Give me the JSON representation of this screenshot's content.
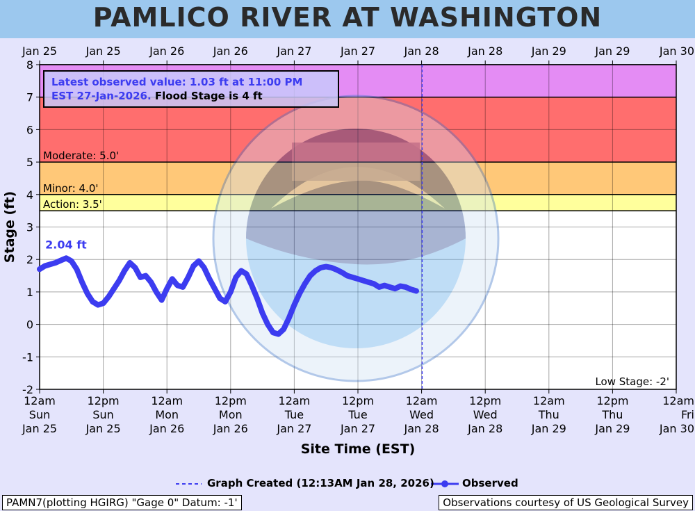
{
  "title": "PAMLICO RIVER AT WASHINGTON",
  "colors": {
    "page_bg": "#e4e4fc",
    "title_bg": "#9cc8ee",
    "observed": "#3c3cf0",
    "major": "#e48cf4",
    "moderate": "#ff6e6e",
    "minor": "#ffc878",
    "action": "#ffff9c",
    "normal": "#ffffff"
  },
  "info_box": {
    "line1": "Latest observed value: 1.03 ft at 11:00 PM",
    "line2_blue": "EST 27-Jan-2026.",
    "line2_black": " Flood Stage is 4 ft"
  },
  "legend": {
    "graph_created": "Graph Created (12:13AM Jan 28, 2026)",
    "observed": "Observed"
  },
  "footer": {
    "left": "PAMN7(plotting HGIRG) \"Gage 0\" Datum: -1'",
    "right": "Observations courtesy of US Geological Survey"
  },
  "chart_data": {
    "type": "line",
    "xlabel": "Site Time (EST)",
    "ylabel": "Stage (ft)",
    "ylim": [
      -2,
      8
    ],
    "yticks": [
      "8",
      "7",
      "6",
      "5",
      "4",
      "3",
      "2",
      "1",
      "0",
      "-1",
      "-2"
    ],
    "xlim_hours": [
      0,
      120
    ],
    "top_ticks": [
      "Jan 25",
      "Jan 25",
      "Jan 26",
      "Jan 26",
      "Jan 27",
      "Jan 27",
      "Jan 28",
      "Jan 28",
      "Jan 29",
      "Jan 29",
      "Jan 30"
    ],
    "bottom_ticks": [
      [
        "12am",
        "Sun",
        "Jan 25"
      ],
      [
        "12pm",
        "Sun",
        "Jan 25"
      ],
      [
        "12am",
        "Mon",
        "Jan 26"
      ],
      [
        "12pm",
        "Mon",
        "Jan 26"
      ],
      [
        "12am",
        "Tue",
        "Jan 27"
      ],
      [
        "12pm",
        "Tue",
        "Jan 27"
      ],
      [
        "12am",
        "Wed",
        "Jan 28"
      ],
      [
        "12pm",
        "Wed",
        "Jan 28"
      ],
      [
        "12am",
        "Thu",
        "Jan 29"
      ],
      [
        "12pm",
        "Thu",
        "Jan 29"
      ],
      [
        "12am",
        "Fri",
        "Jan 30"
      ]
    ],
    "flood_categories": [
      {
        "name": "Major",
        "from": 7,
        "to": 8,
        "label": ""
      },
      {
        "name": "Moderate",
        "from": 5,
        "to": 7,
        "label": "Moderate: 5.0'"
      },
      {
        "name": "Minor",
        "from": 4,
        "to": 5,
        "label": "Minor: 4.0'"
      },
      {
        "name": "Action",
        "from": 3.5,
        "to": 4,
        "label": "Action: 3.5'"
      }
    ],
    "low_stage_label": "Low Stage: -2'",
    "graph_created_hour": 72.1,
    "peak_annotation": {
      "text": "2.04 ft",
      "x": 5,
      "y": 2.04
    },
    "series": [
      {
        "name": "Observed",
        "x": [
          0,
          1,
          2,
          3,
          4,
          5,
          6,
          7,
          8,
          9,
          10,
          11,
          12,
          13,
          14,
          15,
          16,
          17,
          18,
          19,
          20,
          21,
          22,
          23,
          24,
          25,
          26,
          27,
          28,
          29,
          30,
          31,
          32,
          33,
          34,
          35,
          36,
          37,
          38,
          39,
          40,
          41,
          42,
          43,
          44,
          45,
          46,
          47,
          48,
          49,
          50,
          51,
          52,
          53,
          54,
          55,
          56,
          57,
          58,
          59,
          60,
          61,
          62,
          63,
          64,
          65,
          66,
          67,
          68,
          69,
          70,
          71
        ],
        "y": [
          1.7,
          1.8,
          1.85,
          1.9,
          1.97,
          2.04,
          1.95,
          1.7,
          1.3,
          0.95,
          0.7,
          0.6,
          0.65,
          0.85,
          1.1,
          1.35,
          1.65,
          1.9,
          1.75,
          1.45,
          1.5,
          1.3,
          1.0,
          0.75,
          1.1,
          1.4,
          1.2,
          1.15,
          1.45,
          1.8,
          1.95,
          1.75,
          1.4,
          1.1,
          0.8,
          0.7,
          1.0,
          1.45,
          1.65,
          1.55,
          1.2,
          0.8,
          0.35,
          0.0,
          -0.25,
          -0.3,
          -0.15,
          0.2,
          0.6,
          0.95,
          1.25,
          1.5,
          1.65,
          1.75,
          1.78,
          1.75,
          1.68,
          1.6,
          1.5,
          1.45,
          1.4,
          1.35,
          1.3,
          1.25,
          1.15,
          1.2,
          1.15,
          1.1,
          1.18,
          1.15,
          1.08,
          1.03
        ]
      }
    ]
  }
}
